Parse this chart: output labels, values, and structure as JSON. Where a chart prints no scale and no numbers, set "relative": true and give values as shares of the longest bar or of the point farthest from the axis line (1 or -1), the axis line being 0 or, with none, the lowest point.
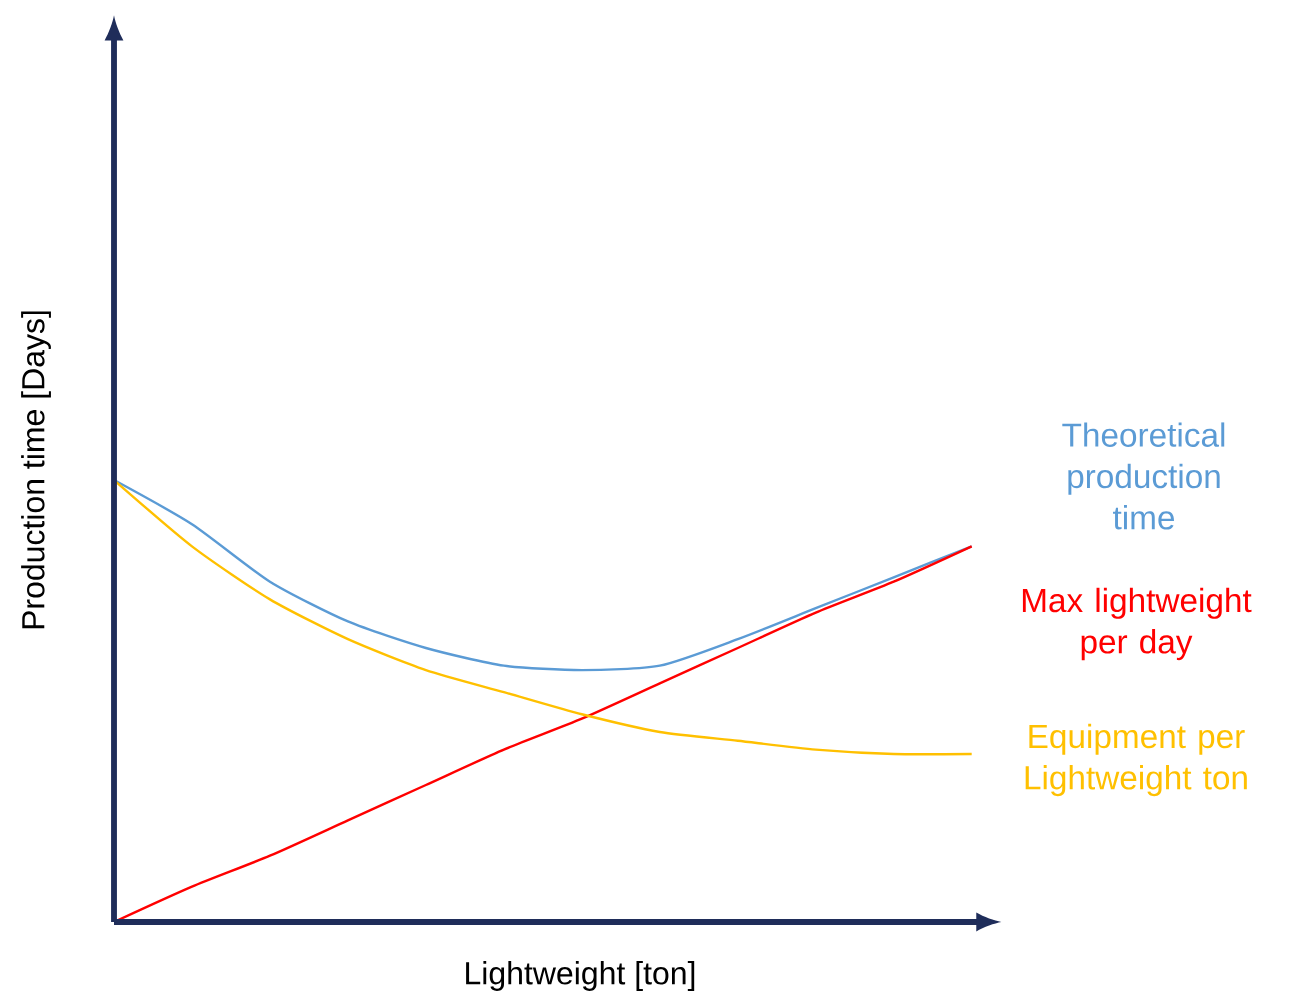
{
  "chart_data": {
    "type": "line",
    "relative": true,
    "xlabel": "Lightweight [ton]",
    "ylabel": "Production time [Days]",
    "categories": [
      null,
      null,
      null,
      null,
      null,
      null,
      null,
      null,
      null,
      null,
      null,
      null
    ],
    "series": [
      {
        "name": "Theoretical production time",
        "color": "#5b9bd5",
        "values": [
          1,
          0.9,
          0.77,
          0.68,
          0.62,
          0.58,
          0.57,
          0.58,
          0.64,
          0.71,
          0.78,
          0.85
        ]
      },
      {
        "name": "Max lightweight per day",
        "color": "#ff0000",
        "values": [
          0,
          0.08,
          0.15,
          0.23,
          0.31,
          0.39,
          0.46,
          0.54,
          0.62,
          0.7,
          0.77,
          0.85
        ]
      },
      {
        "name": "Equipment per Lightweight ton",
        "color": "#ffc000",
        "values": [
          1,
          0.85,
          0.73,
          0.64,
          0.57,
          0.52,
          0.47,
          0.43,
          0.41,
          0.39,
          0.38,
          0.38
        ]
      }
    ],
    "legend": false,
    "marker": "none",
    "line_style": "solid"
  }
}
